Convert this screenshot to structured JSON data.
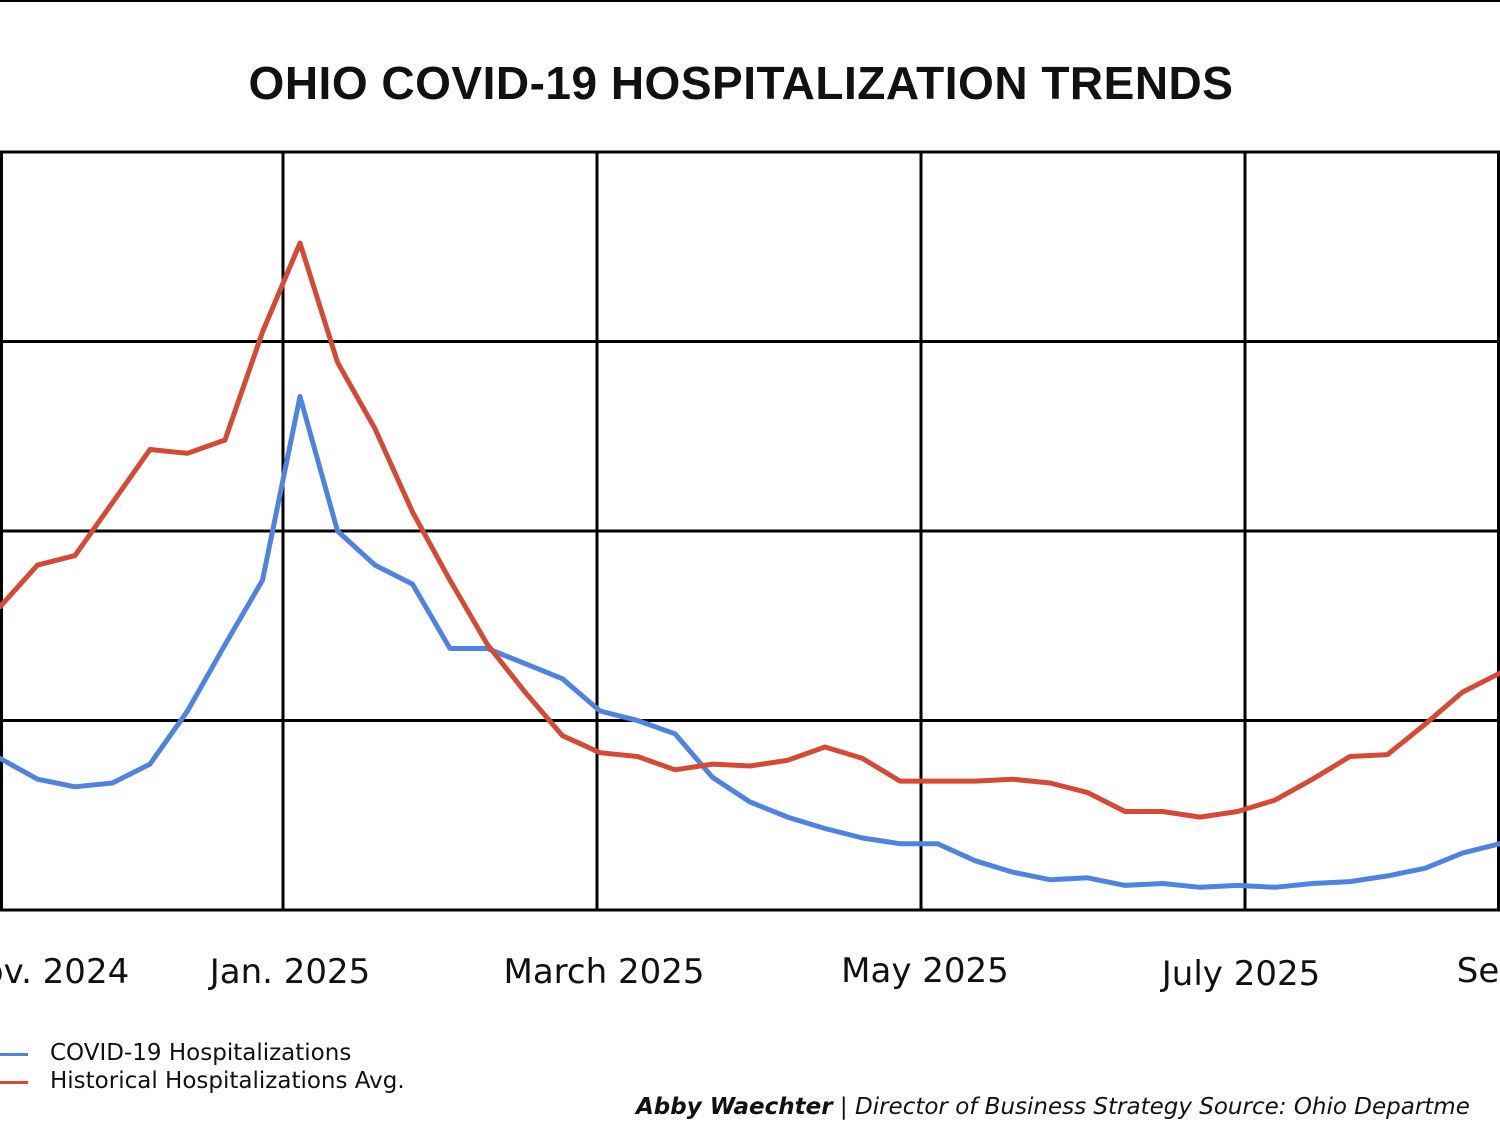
{
  "chart_data": {
    "type": "line",
    "title": "OHIO COVID-19 HOSPITALIZATION TRENDS",
    "xlabel": "",
    "ylabel": "",
    "x_ticks": [
      "ov. 2024",
      "Jan. 2025",
      "March 2025",
      "May 2025",
      "July 2025",
      "Se"
    ],
    "xlim": [
      0,
      40
    ],
    "ylim": [
      0,
      4
    ],
    "grid": true,
    "colors": {
      "covid": "#4f83e0",
      "historical": "#d44a35"
    },
    "series": [
      {
        "name": "COVID-19 Hospitalizations",
        "color": "#4f83e0",
        "x": [
          0,
          1,
          2,
          3,
          4,
          5,
          6,
          7,
          8,
          9,
          10,
          11,
          12,
          13,
          14,
          15,
          16,
          17,
          18,
          19,
          20,
          21,
          22,
          23,
          24,
          25,
          26,
          27,
          28,
          29,
          30,
          31,
          32,
          33,
          34,
          35,
          36,
          37,
          38,
          39,
          40
        ],
        "values": [
          0.8,
          0.69,
          0.65,
          0.67,
          0.77,
          1.05,
          1.4,
          1.74,
          2.71,
          2.0,
          1.82,
          1.72,
          1.38,
          1.38,
          1.3,
          1.22,
          1.05,
          1.0,
          0.93,
          0.7,
          0.57,
          0.49,
          0.43,
          0.38,
          0.35,
          0.35,
          0.26,
          0.2,
          0.16,
          0.17,
          0.13,
          0.14,
          0.12,
          0.13,
          0.12,
          0.14,
          0.15,
          0.18,
          0.22,
          0.3,
          0.35
        ]
      },
      {
        "name": "Historical Hospitalizations Avg.",
        "color": "#d44a35",
        "x": [
          0,
          1,
          2,
          3,
          4,
          5,
          6,
          7,
          8,
          9,
          10,
          11,
          12,
          13,
          14,
          15,
          16,
          17,
          18,
          19,
          20,
          21,
          22,
          23,
          24,
          25,
          26,
          27,
          28,
          29,
          30,
          31,
          32,
          33,
          34,
          35,
          36,
          37,
          38,
          39,
          40
        ],
        "values": [
          1.6,
          1.82,
          1.87,
          2.15,
          2.43,
          2.41,
          2.48,
          3.05,
          3.52,
          2.89,
          2.54,
          2.1,
          1.74,
          1.4,
          1.15,
          0.92,
          0.83,
          0.81,
          0.74,
          0.77,
          0.76,
          0.79,
          0.86,
          0.8,
          0.68,
          0.68,
          0.68,
          0.69,
          0.67,
          0.62,
          0.52,
          0.52,
          0.49,
          0.52,
          0.58,
          0.69,
          0.81,
          0.82,
          0.98,
          1.15,
          1.25
        ]
      }
    ]
  },
  "legend": {
    "items": [
      {
        "label": "COVID-19 Hospitalizations",
        "color": "#4f83e0"
      },
      {
        "label": "Historical Hospitalizations Avg.",
        "color": "#d44a35"
      }
    ]
  },
  "credit": {
    "author": "Abby Waechter",
    "text": " | Director of Business Strategy Source: Ohio Departme"
  }
}
